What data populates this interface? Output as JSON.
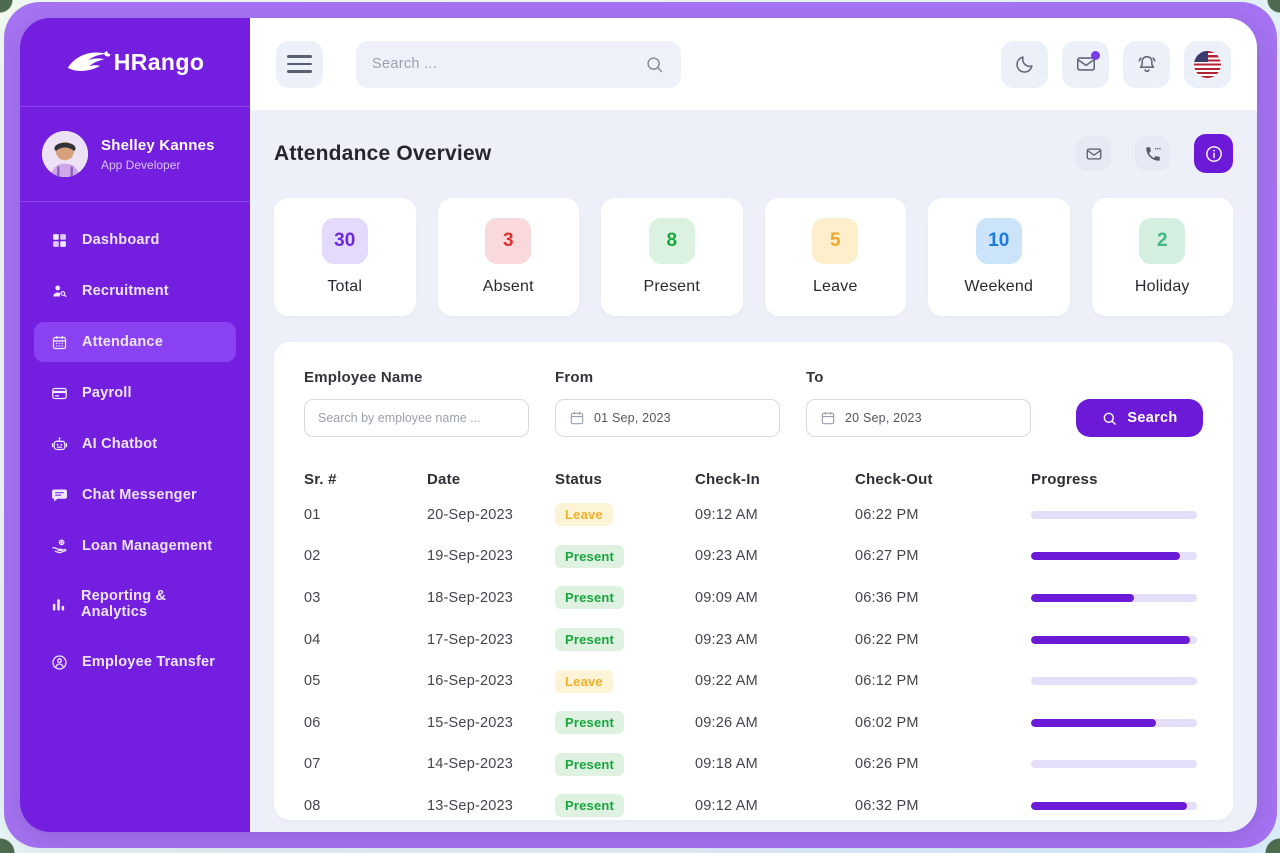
{
  "app": {
    "title": "HRango"
  },
  "colors": {
    "accent": "#6d1ad8",
    "sidebar": "#741fe0",
    "sidebar_active": "#8a42f2",
    "frame": "#a674f2",
    "mail_badge": "#7c3aed",
    "progress_track": "#e4def8",
    "progress_fill": "#6b1ad8",
    "status": {
      "Leave": {
        "bg": "#fdf3d6",
        "fg": "#efb02a"
      },
      "Present": {
        "bg": "#dff2e2",
        "fg": "#17a63c"
      }
    }
  },
  "sidebar": {
    "logo_text": "HRango",
    "user": {
      "name": "Shelley Kannes",
      "role": "App Developer"
    },
    "items": [
      {
        "label": "Dashboard",
        "icon": "dashboard-icon",
        "active": false
      },
      {
        "label": "Recruitment",
        "icon": "recruitment-icon",
        "active": false
      },
      {
        "label": "Attendance",
        "icon": "attendance-calendar-icon",
        "active": true
      },
      {
        "label": "Payroll",
        "icon": "payroll-icon",
        "active": false
      },
      {
        "label": "AI Chatbot",
        "icon": "ai-chatbot-icon",
        "active": false
      },
      {
        "label": "Chat Messenger",
        "icon": "chat-messenger-icon",
        "active": false
      },
      {
        "label": "Loan Management",
        "icon": "loan-management-icon",
        "active": false
      },
      {
        "label": "Reporting & Analytics",
        "icon": "reporting-analytics-icon",
        "active": false
      },
      {
        "label": "Employee Transfer",
        "icon": "employee-transfer-icon",
        "active": false
      }
    ]
  },
  "topbar": {
    "search_placeholder": "Search ...",
    "mail_has_unread": true
  },
  "page": {
    "title": "Attendance Overview"
  },
  "stats": [
    {
      "label": "Total",
      "value": "30",
      "fg": "#6d28d9",
      "bg": "#e4dafb"
    },
    {
      "label": "Absent",
      "value": "3",
      "fg": "#e03131",
      "bg": "#fad9dc"
    },
    {
      "label": "Present",
      "value": "8",
      "fg": "#18a93b",
      "bg": "#dcf2e0"
    },
    {
      "label": "Leave",
      "value": "5",
      "fg": "#f0a92e",
      "bg": "#fdefcb"
    },
    {
      "label": "Weekend",
      "value": "10",
      "fg": "#1b7be0",
      "bg": "#cbe4fa"
    },
    {
      "label": "Holiday",
      "value": "2",
      "fg": "#41b883",
      "bg": "#d4eedf"
    }
  ],
  "filters": {
    "employee_name": {
      "label": "Employee Name",
      "placeholder": "Search by employee name ..."
    },
    "from": {
      "label": "From",
      "value": "01 Sep, 2023"
    },
    "to": {
      "label": "To",
      "value": "20 Sep, 2023"
    },
    "search_button": "Search"
  },
  "table": {
    "columns": [
      "Sr. #",
      "Date",
      "Status",
      "Check-In",
      "Check-Out",
      "Progress"
    ],
    "rows": [
      {
        "sr": "01",
        "date": "20-Sep-2023",
        "status": "Leave",
        "check_in": "09:12 AM",
        "check_out": "06:22 PM",
        "progress_pct": 0
      },
      {
        "sr": "02",
        "date": "19-Sep-2023",
        "status": "Present",
        "check_in": "09:23 AM",
        "check_out": "06:27 PM",
        "progress_pct": 90
      },
      {
        "sr": "03",
        "date": "18-Sep-2023",
        "status": "Present",
        "check_in": "09:09 AM",
        "check_out": "06:36 PM",
        "progress_pct": 62
      },
      {
        "sr": "04",
        "date": "17-Sep-2023",
        "status": "Present",
        "check_in": "09:23 AM",
        "check_out": "06:22 PM",
        "progress_pct": 96
      },
      {
        "sr": "05",
        "date": "16-Sep-2023",
        "status": "Leave",
        "check_in": "09:22 AM",
        "check_out": "06:12 PM",
        "progress_pct": 0
      },
      {
        "sr": "06",
        "date": "15-Sep-2023",
        "status": "Present",
        "check_in": "09:26 AM",
        "check_out": "06:02 PM",
        "progress_pct": 75
      },
      {
        "sr": "07",
        "date": "14-Sep-2023",
        "status": "Present",
        "check_in": "09:18 AM",
        "check_out": "06:26 PM",
        "progress_pct": 0
      },
      {
        "sr": "08",
        "date": "13-Sep-2023",
        "status": "Present",
        "check_in": "09:12 AM",
        "check_out": "06:32 PM",
        "progress_pct": 94
      }
    ]
  }
}
